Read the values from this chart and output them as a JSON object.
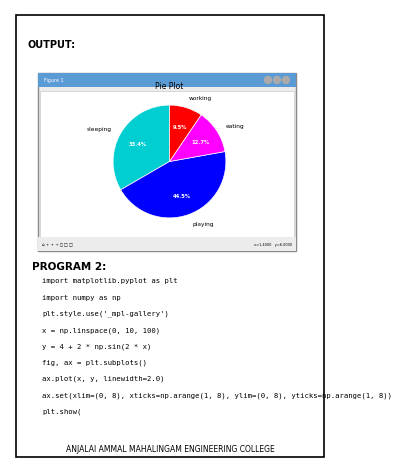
{
  "title": "OUTPUT:",
  "program_label": "PROGRAM 2:",
  "pie_title": "Pie Plot",
  "pie_labels": [
    "sleeping",
    "playing",
    "eating",
    "working"
  ],
  "pie_sizes": [
    29.2,
    38.9,
    11.1,
    8.3
  ],
  "pie_colors": [
    "#00CED1",
    "#0000FF",
    "#FF00FF",
    "#FF0000"
  ],
  "pie_startangle": 90,
  "code_lines": [
    "import matplotlib.pyplot as plt",
    "import numpy as np",
    "plt.style.use('_mpl-gallery')",
    "x = np.linspace(0, 10, 100)",
    "y = 4 + 2 * np.sin(2 * x)",
    "fig, ax = plt.subplots()",
    "ax.plot(x, y, linewidth=2.0)",
    "ax.set(xlim=(0, 8), xticks=np.arange(1, 8), ylim=(0, 8), yticks=np.arange(1, 8))",
    "plt.show("
  ],
  "footer": "ANJALAI AMMAL MAHALINGAM ENGINEERING COLLEGE",
  "bg_color": "#FFFFFF",
  "text_color": "#000000"
}
